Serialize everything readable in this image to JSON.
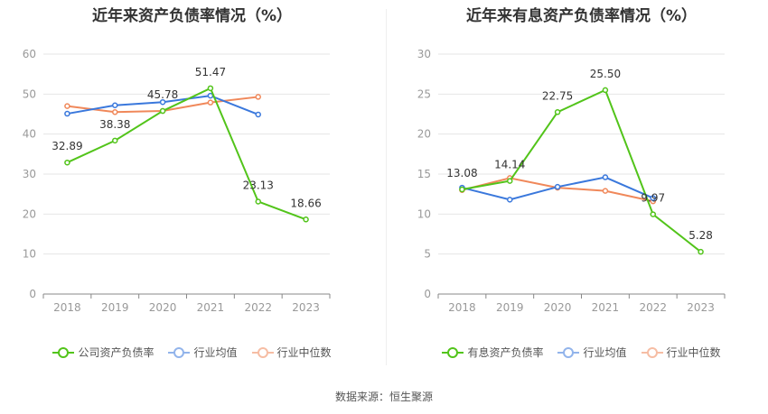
{
  "colors": {
    "series1": "#52c41a",
    "series2": "#3a78dc",
    "series3": "#f0885a",
    "grid": "#e6e6e6",
    "axis": "#999999",
    "label": "#333333"
  },
  "charts": [
    {
      "title": "近年来资产负债率情况（%）",
      "legend": [
        "公司资产负债率",
        "行业均值",
        "行业中位数"
      ]
    },
    {
      "title": "近年来有息资产负债率情况（%）",
      "legend": [
        "有息资产负债率",
        "行业均值",
        "行业中位数"
      ]
    }
  ],
  "source": "数据来源：恒生聚源",
  "chart_data": [
    {
      "type": "line",
      "title": "近年来资产负债率情况（%）",
      "categories": [
        "2018",
        "2019",
        "2020",
        "2021",
        "2022",
        "2023"
      ],
      "ylim": [
        0,
        60
      ],
      "yticks": [
        0,
        10,
        20,
        30,
        40,
        50,
        60
      ],
      "grid": true,
      "legend_position": "bottom",
      "series": [
        {
          "name": "公司资产负债率",
          "values": [
            32.89,
            38.38,
            45.78,
            51.47,
            23.13,
            18.66
          ],
          "labels": [
            "32.89",
            "38.38",
            "45.78",
            "51.47",
            "23.13",
            "18.66"
          ]
        },
        {
          "name": "行业均值",
          "values": [
            45.1,
            47.2,
            48.0,
            49.6,
            44.9,
            null
          ]
        },
        {
          "name": "行业中位数",
          "values": [
            47.0,
            45.5,
            45.8,
            47.9,
            49.3,
            null
          ]
        }
      ]
    },
    {
      "type": "line",
      "title": "近年来有息资产负债率情况（%）",
      "categories": [
        "2018",
        "2019",
        "2020",
        "2021",
        "2022",
        "2023"
      ],
      "ylim": [
        0,
        30
      ],
      "yticks": [
        0,
        5,
        10,
        15,
        20,
        25,
        30
      ],
      "grid": true,
      "legend_position": "bottom",
      "series": [
        {
          "name": "有息资产负债率",
          "values": [
            13.08,
            14.14,
            22.75,
            25.5,
            9.97,
            5.28
          ],
          "labels": [
            "13.08",
            "14.14",
            "22.75",
            "25.50",
            "9.97",
            "5.28"
          ]
        },
        {
          "name": "行业均值",
          "values": [
            13.3,
            11.8,
            13.4,
            14.6,
            12.0,
            null
          ]
        },
        {
          "name": "行业中位数",
          "values": [
            13.0,
            14.5,
            13.3,
            12.9,
            11.6,
            null
          ]
        }
      ]
    }
  ]
}
